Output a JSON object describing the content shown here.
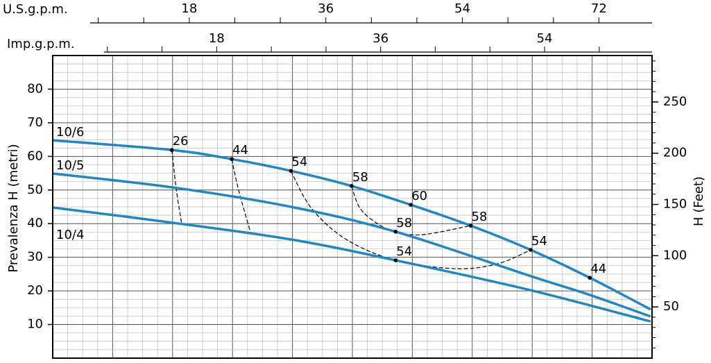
{
  "chart_data": {
    "type": "line",
    "y_label": "Prevalenza H (metri)",
    "y2_label": "H (Feet)",
    "x_label": "U.S.g.p.m.",
    "x2_label": "Imp.g.p.m.",
    "xlim": [
      0,
      79
    ],
    "xticks": [
      18,
      36,
      54,
      72
    ],
    "x_minor_ticks": [
      6,
      12,
      24,
      30,
      42,
      48,
      60,
      66
    ],
    "x2lim": [
      0,
      65.8
    ],
    "x2ticks": [
      18,
      36,
      54
    ],
    "x2_minor_ticks": [
      6,
      12,
      24,
      30,
      42,
      48,
      60
    ],
    "ylim": [
      0,
      90
    ],
    "yticks": [
      10,
      20,
      30,
      40,
      50,
      60,
      70,
      80
    ],
    "y2lim": [
      0,
      295.3
    ],
    "y2ticks": [
      50,
      100,
      150,
      200,
      250
    ],
    "grid": true,
    "series": [
      {
        "name": "10/6",
        "color": "#1f87c6",
        "x": [
          0,
          15.7,
          23.6,
          31.4,
          39.4,
          47.2,
          55.1,
          63.0,
          70.8,
          78.8
        ],
        "values": [
          64.8,
          61.9,
          59.2,
          55.7,
          51.2,
          45.6,
          39.4,
          32.2,
          23.9,
          14.5
        ]
      },
      {
        "name": "10/5",
        "color": "#1f87c6",
        "x": [
          0,
          15.7,
          31.4,
          45.2,
          63.0,
          70.8,
          78.8
        ],
        "values": [
          54.9,
          50.8,
          45.0,
          37.6,
          24.4,
          18.8,
          12.4
        ]
      },
      {
        "name": "10/4",
        "color": "#1f87c6",
        "x": [
          0,
          15.7,
          31.4,
          45.2,
          63.0,
          78.8
        ],
        "values": [
          44.8,
          40.3,
          35.3,
          29.1,
          20.2,
          10.9
        ]
      }
    ],
    "points": [
      {
        "x": 15.7,
        "y": 61.9,
        "value": 26
      },
      {
        "x": 23.6,
        "y": 59.2,
        "value": 44
      },
      {
        "x": 31.4,
        "y": 55.7,
        "value": 54
      },
      {
        "x": 39.4,
        "y": 51.2,
        "value": 58
      },
      {
        "x": 47.2,
        "y": 45.6,
        "value": 60
      },
      {
        "x": 55.1,
        "y": 39.4,
        "value": 58
      },
      {
        "x": 63.0,
        "y": 32.2,
        "value": 54
      },
      {
        "x": 70.8,
        "y": 23.9,
        "value": 44
      },
      {
        "x": 45.2,
        "y": 37.6,
        "value": 58
      },
      {
        "x": 45.2,
        "y": 29.1,
        "value": 54
      }
    ],
    "efficiency_lines": [
      {
        "x": [
          15.7,
          16.3,
          17.0
        ],
        "y": [
          61.9,
          50,
          40.0
        ]
      },
      {
        "x": [
          23.6,
          24.5,
          26.1
        ],
        "y": [
          59.2,
          50,
          37.2
        ]
      },
      {
        "x": [
          31.4,
          34.1,
          38.7,
          45.2,
          53.2,
          58.7,
          63.0
        ],
        "y": [
          55.7,
          44.6,
          35.3,
          29.1,
          26.6,
          28.1,
          32.2
        ]
      },
      {
        "x": [
          39.4,
          40.5,
          42.8,
          45.2,
          48.7,
          55.1
        ],
        "y": [
          51.2,
          44.6,
          40.0,
          37.6,
          36.7,
          39.4
        ]
      }
    ]
  }
}
